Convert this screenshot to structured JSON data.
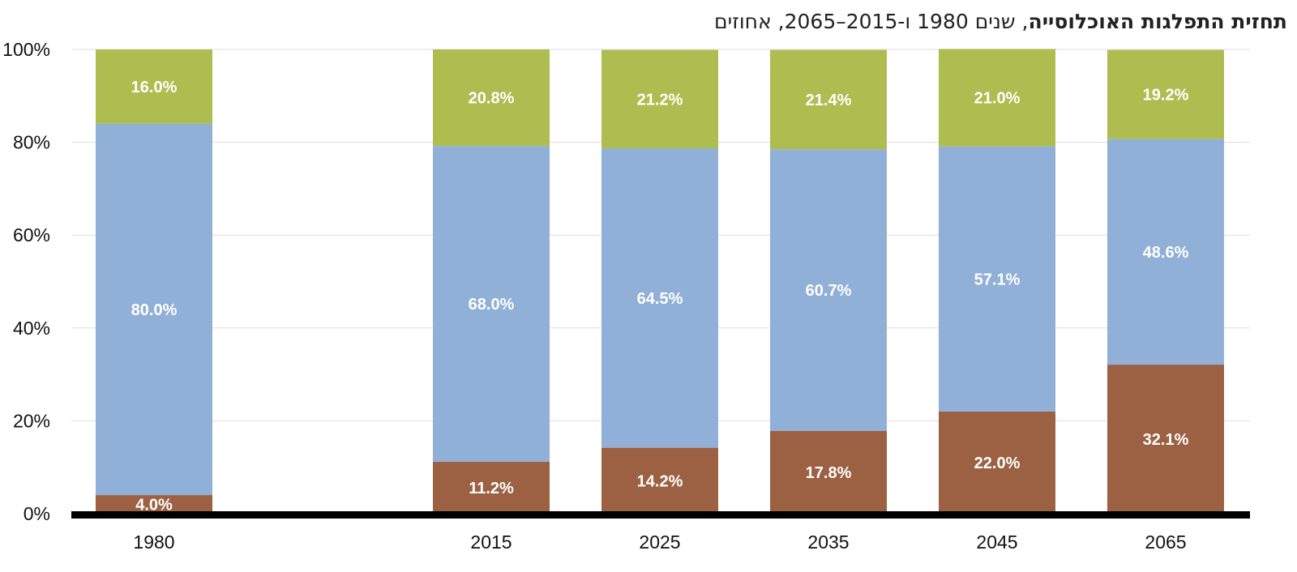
{
  "title": {
    "bold": "תחזית התפלגות האוכלוסייה",
    "rest": ", שנים 1980 ו-2015–2065, אחוזים"
  },
  "chart_data": {
    "type": "bar",
    "stacked": true,
    "categories": [
      "1980",
      "2015",
      "2025",
      "2035",
      "2045",
      "2065"
    ],
    "yticks": [
      "0%",
      "20%",
      "40%",
      "60%",
      "80%",
      "100%"
    ],
    "ylim": [
      0,
      100
    ],
    "grid": true,
    "series": [
      {
        "color": "#9B6142",
        "values": [
          4.0,
          11.2,
          14.2,
          17.8,
          22.0,
          32.1
        ],
        "labels": [
          "4.0%",
          "11.2%",
          "14.2%",
          "17.8%",
          "22.0%",
          "32.1%"
        ]
      },
      {
        "color": "#91B0D8",
        "values": [
          80.0,
          68.0,
          64.5,
          60.7,
          57.1,
          48.6
        ],
        "labels": [
          "80.0%",
          "68.0%",
          "64.5%",
          "60.7%",
          "57.1%",
          "48.6%"
        ]
      },
      {
        "color": "#AEBD50",
        "values": [
          16.0,
          20.8,
          21.2,
          21.4,
          21.0,
          19.2
        ],
        "labels": [
          "16.0%",
          "20.8%",
          "21.2%",
          "21.4%",
          "21.0%",
          "19.2%"
        ]
      }
    ]
  }
}
